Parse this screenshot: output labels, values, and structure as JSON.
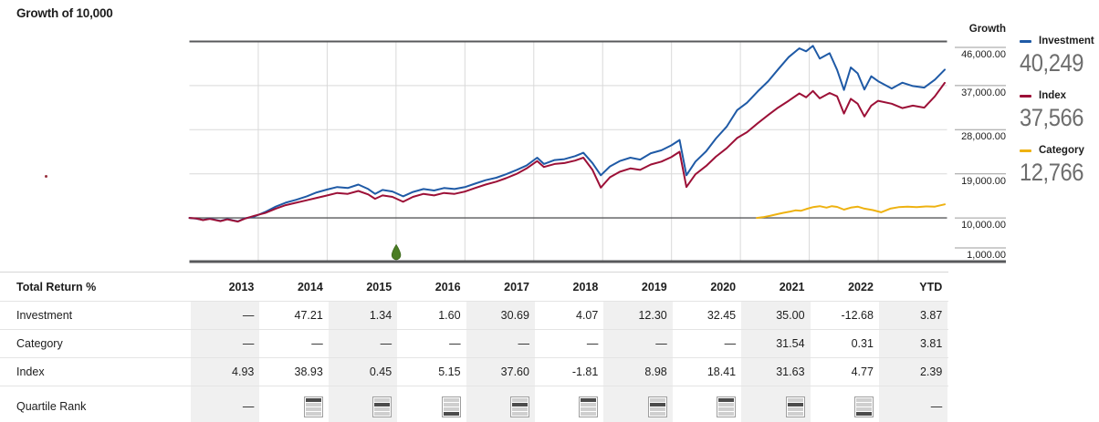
{
  "title": "Growth of 10,000",
  "right_axis": {
    "header": "Growth",
    "labels": [
      "46,000.00",
      "37,000.00",
      "28,000.00",
      "19,000.00",
      "10,000.00",
      "1,000.00"
    ]
  },
  "legend": {
    "items": [
      {
        "label": "Investment",
        "value": "40,249",
        "color": "#1f5aa6"
      },
      {
        "label": "Index",
        "value": "37,566",
        "color": "#9c1037"
      },
      {
        "label": "Category",
        "value": "12,766",
        "color": "#eeb211"
      }
    ]
  },
  "chart_data": {
    "type": "line",
    "title": "Growth of 10,000",
    "ylabel": "Growth",
    "ylim": [
      1000,
      46000
    ],
    "y_tick_values": [
      46000,
      37000,
      28000,
      19000,
      10000,
      1000
    ],
    "y_tick_labels": [
      "46,000.00",
      "37,000.00",
      "28,000.00",
      "19,000.00",
      "10,000.00",
      "1,000.00"
    ],
    "x_columns": [
      "2013",
      "2014",
      "2015",
      "2016",
      "2017",
      "2018",
      "2019",
      "2020",
      "2021",
      "2022",
      "YTD"
    ],
    "grid": true,
    "legend_position": "right",
    "event_marker": {
      "t": 0.273,
      "at_year_boundary": "2016",
      "color": "#4a7d23"
    },
    "series": [
      {
        "name": "Investment",
        "color": "#1f5aa6",
        "final_value": 40249,
        "points": [
          [
            0,
            10000
          ],
          [
            0.009,
            9850
          ],
          [
            0.018,
            9600
          ],
          [
            0.027,
            9850
          ],
          [
            0.041,
            9400
          ],
          [
            0.05,
            9750
          ],
          [
            0.064,
            9300
          ],
          [
            0.073,
            9900
          ],
          [
            0.086,
            10300
          ],
          [
            0.1,
            11200
          ],
          [
            0.114,
            12300
          ],
          [
            0.127,
            13100
          ],
          [
            0.141,
            13700
          ],
          [
            0.155,
            14400
          ],
          [
            0.168,
            15200
          ],
          [
            0.182,
            15800
          ],
          [
            0.195,
            16300
          ],
          [
            0.209,
            16100
          ],
          [
            0.223,
            16800
          ],
          [
            0.236,
            15900
          ],
          [
            0.245,
            14900
          ],
          [
            0.255,
            15700
          ],
          [
            0.268,
            15400
          ],
          [
            0.282,
            14400
          ],
          [
            0.295,
            15300
          ],
          [
            0.309,
            15900
          ],
          [
            0.323,
            15600
          ],
          [
            0.336,
            16100
          ],
          [
            0.35,
            15900
          ],
          [
            0.364,
            16300
          ],
          [
            0.377,
            17000
          ],
          [
            0.391,
            17700
          ],
          [
            0.405,
            18200
          ],
          [
            0.418,
            18900
          ],
          [
            0.432,
            19800
          ],
          [
            0.445,
            20700
          ],
          [
            0.459,
            22300
          ],
          [
            0.468,
            21000
          ],
          [
            0.482,
            21800
          ],
          [
            0.495,
            22000
          ],
          [
            0.509,
            22600
          ],
          [
            0.52,
            23300
          ],
          [
            0.532,
            21200
          ],
          [
            0.543,
            18700
          ],
          [
            0.555,
            20500
          ],
          [
            0.568,
            21600
          ],
          [
            0.582,
            22300
          ],
          [
            0.595,
            21900
          ],
          [
            0.609,
            23200
          ],
          [
            0.623,
            23800
          ],
          [
            0.636,
            24800
          ],
          [
            0.647,
            25900
          ],
          [
            0.656,
            18700
          ],
          [
            0.668,
            21500
          ],
          [
            0.682,
            23600
          ],
          [
            0.695,
            26200
          ],
          [
            0.709,
            28600
          ],
          [
            0.723,
            32000
          ],
          [
            0.736,
            33500
          ],
          [
            0.75,
            35800
          ],
          [
            0.764,
            37900
          ],
          [
            0.777,
            40300
          ],
          [
            0.791,
            42800
          ],
          [
            0.805,
            44600
          ],
          [
            0.814,
            44000
          ],
          [
            0.823,
            45100
          ],
          [
            0.832,
            42500
          ],
          [
            0.845,
            43600
          ],
          [
            0.855,
            40200
          ],
          [
            0.864,
            36100
          ],
          [
            0.873,
            40700
          ],
          [
            0.882,
            39500
          ],
          [
            0.891,
            36200
          ],
          [
            0.9,
            38900
          ],
          [
            0.909,
            37900
          ],
          [
            0.927,
            36400
          ],
          [
            0.941,
            37600
          ],
          [
            0.955,
            36900
          ],
          [
            0.97,
            36600
          ],
          [
            0.984,
            38200
          ],
          [
            0.997,
            40249
          ]
        ]
      },
      {
        "name": "Index",
        "color": "#9c1037",
        "final_value": 37566,
        "points": [
          [
            0,
            10000
          ],
          [
            0.009,
            9900
          ],
          [
            0.018,
            9550
          ],
          [
            0.027,
            9800
          ],
          [
            0.041,
            9350
          ],
          [
            0.05,
            9700
          ],
          [
            0.064,
            9250
          ],
          [
            0.073,
            9850
          ],
          [
            0.086,
            10450
          ],
          [
            0.1,
            11000
          ],
          [
            0.114,
            11900
          ],
          [
            0.127,
            12600
          ],
          [
            0.141,
            13100
          ],
          [
            0.155,
            13600
          ],
          [
            0.168,
            14100
          ],
          [
            0.182,
            14600
          ],
          [
            0.195,
            15100
          ],
          [
            0.209,
            14900
          ],
          [
            0.223,
            15500
          ],
          [
            0.236,
            14800
          ],
          [
            0.245,
            13900
          ],
          [
            0.255,
            14600
          ],
          [
            0.268,
            14300
          ],
          [
            0.282,
            13300
          ],
          [
            0.295,
            14300
          ],
          [
            0.309,
            14900
          ],
          [
            0.323,
            14600
          ],
          [
            0.336,
            15100
          ],
          [
            0.35,
            14900
          ],
          [
            0.364,
            15400
          ],
          [
            0.377,
            16100
          ],
          [
            0.391,
            16800
          ],
          [
            0.405,
            17400
          ],
          [
            0.418,
            18100
          ],
          [
            0.432,
            19000
          ],
          [
            0.445,
            20100
          ],
          [
            0.459,
            21600
          ],
          [
            0.468,
            20400
          ],
          [
            0.482,
            21000
          ],
          [
            0.495,
            21200
          ],
          [
            0.509,
            21700
          ],
          [
            0.52,
            22300
          ],
          [
            0.532,
            19800
          ],
          [
            0.543,
            16200
          ],
          [
            0.555,
            18300
          ],
          [
            0.568,
            19400
          ],
          [
            0.582,
            20100
          ],
          [
            0.595,
            19800
          ],
          [
            0.609,
            20900
          ],
          [
            0.623,
            21500
          ],
          [
            0.636,
            22400
          ],
          [
            0.647,
            23500
          ],
          [
            0.656,
            16300
          ],
          [
            0.668,
            18900
          ],
          [
            0.682,
            20600
          ],
          [
            0.695,
            22500
          ],
          [
            0.709,
            24200
          ],
          [
            0.723,
            26300
          ],
          [
            0.736,
            27500
          ],
          [
            0.75,
            29300
          ],
          [
            0.764,
            31000
          ],
          [
            0.777,
            32500
          ],
          [
            0.791,
            33900
          ],
          [
            0.805,
            35400
          ],
          [
            0.814,
            34600
          ],
          [
            0.823,
            35900
          ],
          [
            0.832,
            34400
          ],
          [
            0.845,
            35500
          ],
          [
            0.855,
            34800
          ],
          [
            0.864,
            31300
          ],
          [
            0.873,
            34300
          ],
          [
            0.882,
            33300
          ],
          [
            0.891,
            30700
          ],
          [
            0.9,
            32900
          ],
          [
            0.909,
            33900
          ],
          [
            0.927,
            33300
          ],
          [
            0.941,
            32400
          ],
          [
            0.955,
            32900
          ],
          [
            0.97,
            32500
          ],
          [
            0.984,
            34800
          ],
          [
            0.997,
            37566
          ]
        ]
      },
      {
        "name": "Category",
        "color": "#eeb211",
        "final_value": 12766,
        "points": [
          [
            0.749,
            10000
          ],
          [
            0.757,
            10150
          ],
          [
            0.766,
            10400
          ],
          [
            0.775,
            10750
          ],
          [
            0.784,
            11050
          ],
          [
            0.793,
            11300
          ],
          [
            0.8,
            11550
          ],
          [
            0.807,
            11450
          ],
          [
            0.814,
            11800
          ],
          [
            0.823,
            12200
          ],
          [
            0.832,
            12400
          ],
          [
            0.841,
            12100
          ],
          [
            0.848,
            12400
          ],
          [
            0.855,
            12250
          ],
          [
            0.864,
            11700
          ],
          [
            0.873,
            12100
          ],
          [
            0.882,
            12300
          ],
          [
            0.891,
            11900
          ],
          [
            0.902,
            11600
          ],
          [
            0.913,
            11150
          ],
          [
            0.925,
            11900
          ],
          [
            0.936,
            12200
          ],
          [
            0.948,
            12300
          ],
          [
            0.96,
            12200
          ],
          [
            0.972,
            12350
          ],
          [
            0.984,
            12300
          ],
          [
            0.997,
            12766
          ]
        ]
      }
    ]
  },
  "table": {
    "header": [
      "Total Return %",
      "2013",
      "2014",
      "2015",
      "2016",
      "2017",
      "2018",
      "2019",
      "2020",
      "2021",
      "2022",
      "YTD"
    ],
    "shaded_columns": [
      0,
      2,
      4,
      6,
      8,
      10
    ],
    "rows": [
      {
        "label": "Investment",
        "cells": [
          "—",
          "47.21",
          "1.34",
          "1.60",
          "30.69",
          "4.07",
          "12.30",
          "32.45",
          "35.00",
          "-12.68",
          "3.87"
        ]
      },
      {
        "label": "Category",
        "cells": [
          "—",
          "—",
          "—",
          "—",
          "—",
          "—",
          "—",
          "—",
          "31.54",
          "0.31",
          "3.81"
        ]
      },
      {
        "label": "Index",
        "cells": [
          "4.93",
          "38.93",
          "0.45",
          "5.15",
          "37.60",
          "-1.81",
          "8.98",
          "18.41",
          "31.63",
          "4.77",
          "2.39"
        ]
      },
      {
        "label": "Quartile Rank",
        "cells": [
          "—",
          "Q1",
          "Q2",
          "Q4",
          "Q2",
          "Q1",
          "Q2",
          "Q1",
          "Q2",
          "Q4",
          "—"
        ]
      }
    ]
  },
  "colors": {
    "investment": "#1f5aa6",
    "index": "#9c1037",
    "category": "#eeb211",
    "event_marker": "#4a7d23",
    "grid_light": "#d9d9d9",
    "grid_dark": "#58595b",
    "column_shade": "#f0f0f0",
    "legend_value_gray": "#6d6d6d"
  }
}
